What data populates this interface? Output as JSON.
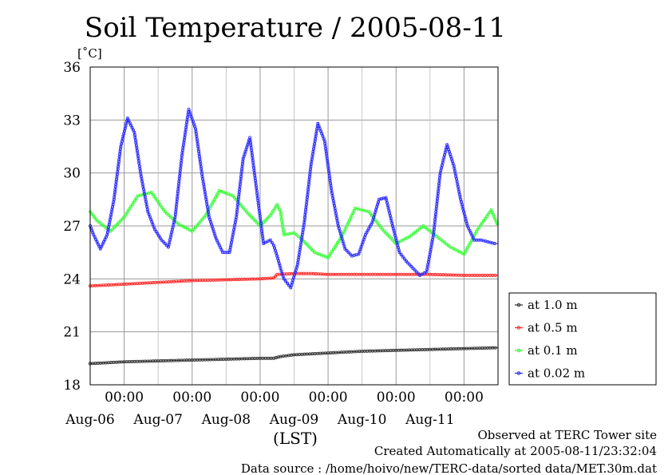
{
  "chart_data": {
    "type": "line",
    "title": "Soil Temperature / 2005-08-11",
    "ylabel": "[˚C]",
    "xlabel": "(LST)",
    "ylim": [
      18,
      36
    ],
    "y_ticks": [
      "18",
      "21",
      "24",
      "27",
      "30",
      "33",
      "36"
    ],
    "xlim_days": [
      5.5,
      11.5
    ],
    "x_tick_labels": [
      "00:00",
      "00:00",
      "00:00",
      "00:00",
      "00:00",
      "00:00"
    ],
    "x_day_labels": [
      "Aug-06",
      "Aug-07",
      "Aug-08",
      "Aug-09",
      "Aug-10",
      "Aug-11"
    ],
    "grid": true,
    "legend_position": "right",
    "series": [
      {
        "name": "at 1.0 m",
        "color": "#333333",
        "x": [
          5.5,
          6.0,
          6.5,
          7.0,
          7.5,
          8.0,
          8.2,
          8.3,
          8.5,
          9.0,
          9.5,
          10.0,
          10.5,
          11.0,
          11.5
        ],
        "y": [
          19.2,
          19.3,
          19.35,
          19.4,
          19.45,
          19.5,
          19.5,
          19.6,
          19.7,
          19.8,
          19.9,
          19.95,
          20.0,
          20.05,
          20.1
        ]
      },
      {
        "name": "at 0.5 m",
        "color": "#ff2a2a",
        "x": [
          5.5,
          6.0,
          6.5,
          7.0,
          7.5,
          8.0,
          8.2,
          8.25,
          8.5,
          8.75,
          9.0,
          9.5,
          10.0,
          10.5,
          11.0,
          11.5
        ],
        "y": [
          23.6,
          23.7,
          23.8,
          23.9,
          23.95,
          24.0,
          24.05,
          24.25,
          24.3,
          24.3,
          24.25,
          24.25,
          24.25,
          24.25,
          24.2,
          24.2
        ]
      },
      {
        "name": "at 0.1 m",
        "color": "#33ff33",
        "x": [
          5.5,
          5.6,
          5.8,
          6.0,
          6.2,
          6.4,
          6.6,
          6.8,
          7.0,
          7.2,
          7.4,
          7.6,
          7.8,
          8.0,
          8.15,
          8.25,
          8.3,
          8.35,
          8.5,
          8.6,
          8.8,
          9.0,
          9.2,
          9.4,
          9.6,
          9.8,
          10.0,
          10.2,
          10.4,
          10.6,
          10.8,
          11.0,
          11.2,
          11.4,
          11.5
        ],
        "y": [
          27.8,
          27.3,
          26.7,
          27.5,
          28.7,
          28.9,
          27.8,
          27.1,
          26.7,
          27.6,
          29.0,
          28.7,
          27.8,
          27.0,
          27.6,
          28.2,
          27.8,
          26.5,
          26.6,
          26.3,
          25.5,
          25.2,
          26.4,
          28.0,
          27.8,
          26.8,
          26.0,
          26.4,
          27.0,
          26.4,
          25.8,
          25.4,
          26.8,
          27.9,
          27.0
        ]
      },
      {
        "name": "at 0.02 m",
        "color": "#2a2aff",
        "x": [
          5.5,
          5.55,
          5.65,
          5.75,
          5.85,
          5.95,
          6.05,
          6.15,
          6.25,
          6.35,
          6.45,
          6.55,
          6.65,
          6.75,
          6.85,
          6.95,
          7.05,
          7.15,
          7.25,
          7.35,
          7.45,
          7.55,
          7.65,
          7.75,
          7.85,
          7.95,
          8.05,
          8.15,
          8.2,
          8.25,
          8.3,
          8.35,
          8.45,
          8.55,
          8.65,
          8.75,
          8.85,
          8.95,
          9.05,
          9.15,
          9.25,
          9.35,
          9.45,
          9.55,
          9.65,
          9.75,
          9.85,
          9.95,
          10.05,
          10.15,
          10.25,
          10.35,
          10.45,
          10.55,
          10.65,
          10.75,
          10.85,
          10.95,
          11.05,
          11.15,
          11.25,
          11.35,
          11.45,
          11.5
        ],
        "y": [
          27.0,
          26.5,
          25.7,
          26.5,
          28.5,
          31.5,
          33.1,
          32.3,
          29.8,
          27.8,
          26.8,
          26.2,
          25.8,
          27.5,
          31.0,
          33.6,
          32.5,
          29.8,
          27.5,
          26.3,
          25.5,
          25.5,
          27.5,
          30.8,
          32.0,
          29.0,
          26.0,
          26.2,
          25.9,
          25.3,
          24.6,
          24.0,
          23.5,
          24.8,
          27.2,
          30.5,
          32.8,
          31.8,
          29.0,
          27.0,
          25.7,
          25.3,
          25.4,
          26.5,
          27.2,
          28.5,
          28.6,
          27.0,
          25.5,
          25.0,
          24.6,
          24.2,
          24.4,
          26.5,
          30.0,
          31.6,
          30.4,
          28.5,
          27.0,
          26.2,
          26.2,
          26.1,
          26.0,
          26.0
        ]
      }
    ]
  },
  "footer": {
    "line1": "Observed at TERC Tower site",
    "line2": "Created Automatically at 2005-08-11/23:32:04",
    "line3": "Data source : /home/hoivo/new/TERC-data/sorted  data/MET.30m.dat"
  }
}
